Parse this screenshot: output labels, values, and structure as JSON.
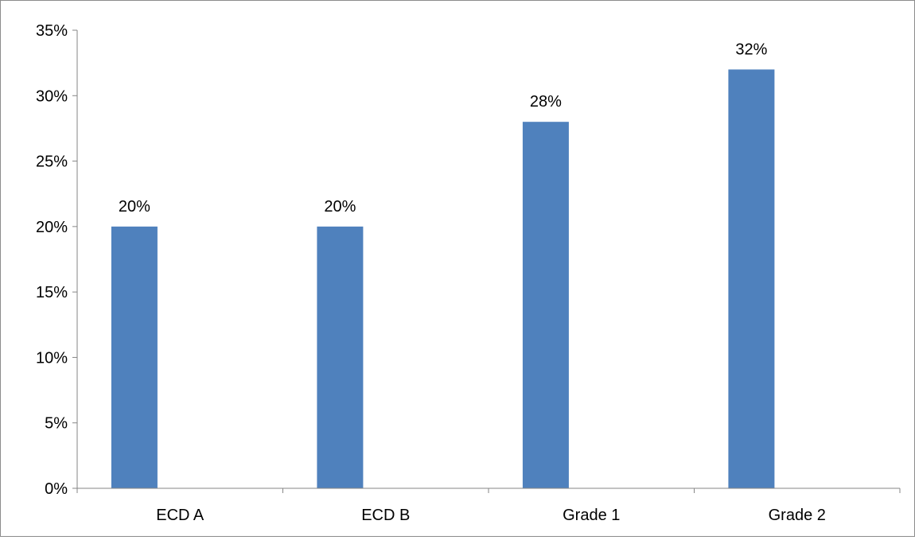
{
  "chart_data": {
    "type": "bar",
    "categories": [
      "ECD A",
      "ECD B",
      "Grade 1",
      "Grade 2"
    ],
    "values": [
      20,
      20,
      28,
      32
    ],
    "value_labels": [
      "20%",
      "20%",
      "28%",
      "32%"
    ],
    "ylim": [
      0,
      35
    ],
    "y_ticks": [
      0,
      5,
      10,
      15,
      20,
      25,
      30,
      35
    ],
    "y_tick_labels": [
      "0%",
      "5%",
      "10%",
      "15%",
      "20%",
      "25%",
      "30%",
      "35%"
    ],
    "title": "",
    "xlabel": "",
    "ylabel": "",
    "grid": false,
    "legend": "none",
    "colors": {
      "bar": "#4f81bd",
      "axis": "#868686",
      "border": "#8c8c8c"
    }
  }
}
